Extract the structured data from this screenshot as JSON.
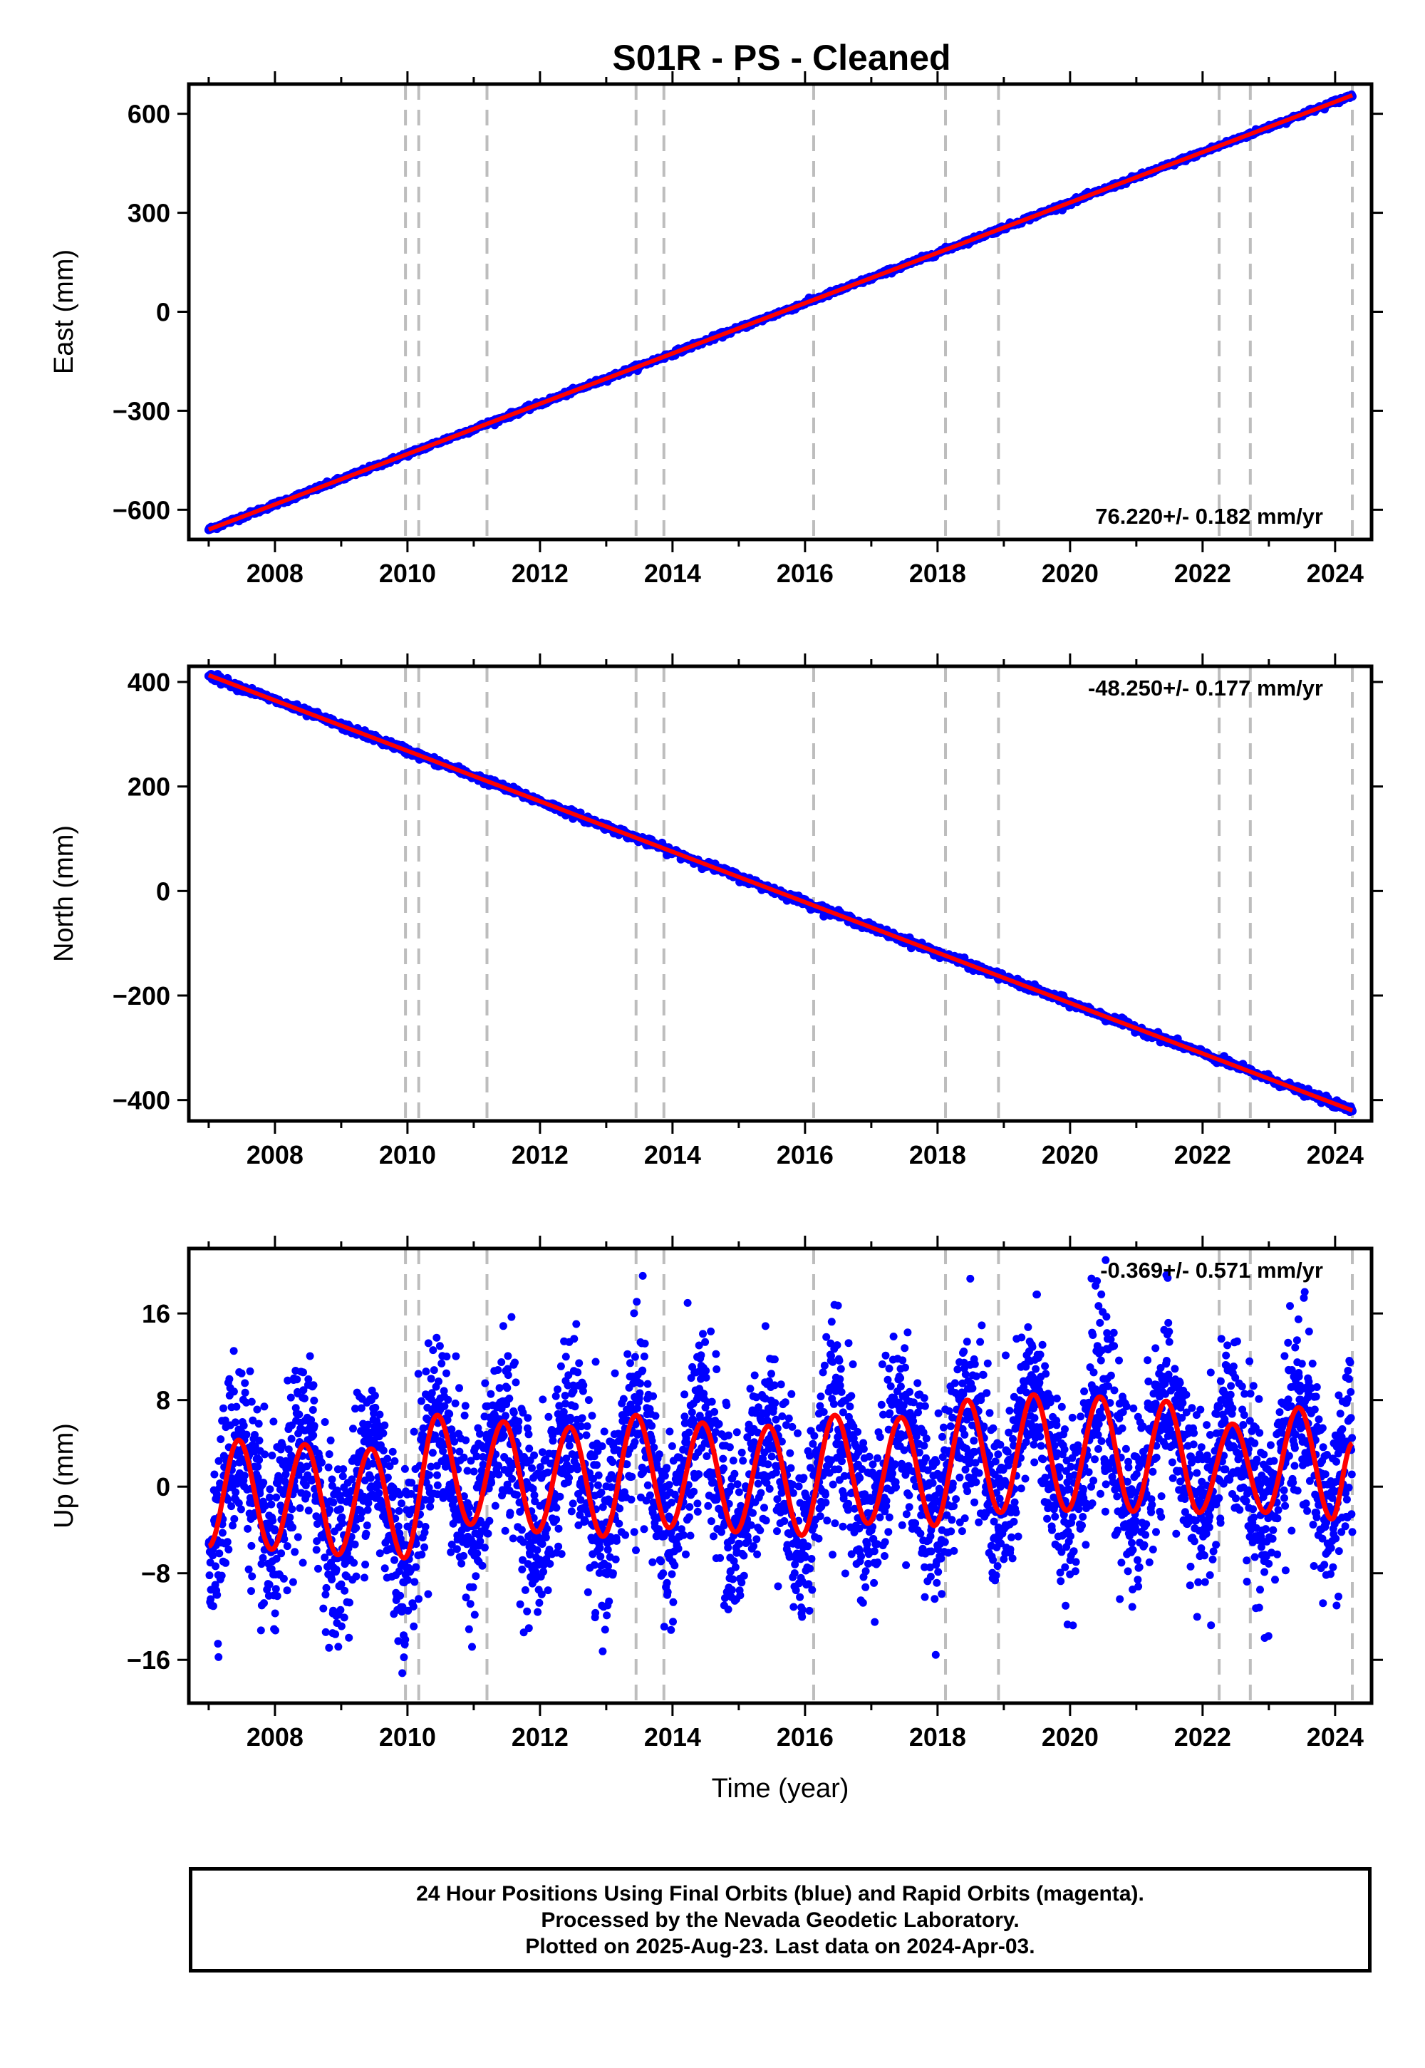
{
  "title": "S01R  - PS - Cleaned",
  "colors": {
    "data_points": "#0000ff",
    "model_fit": "#ff0000",
    "event_lines": "#bdbdbd",
    "frame": "#000000"
  },
  "footer": {
    "line1": "24 Hour Positions Using Final Orbits (blue) and Rapid Orbits (magenta).",
    "line2": "Processed by the Nevada Geodetic Laboratory.",
    "line3": "Plotted on 2025-Aug-23. Last data on 2024-Apr-03."
  },
  "chart_data": [
    {
      "type": "scatter",
      "panel": "east",
      "ylabel": "East (mm)",
      "xlabel": "",
      "xlim": [
        2006.7,
        2024.55
      ],
      "ylim": [
        -690,
        690
      ],
      "xticks": [
        2008,
        2010,
        2012,
        2014,
        2016,
        2018,
        2020,
        2022,
        2024
      ],
      "yticks": [
        -600,
        -300,
        0,
        300,
        600
      ],
      "rate_label": "76.220+/- 0.182 mm/yr",
      "rate_label_position": "bottom-right",
      "trend": {
        "start": [
          2007.0,
          -660
        ],
        "end": [
          2024.26,
          656
        ]
      },
      "event_lines": [
        2009.97,
        2010.17,
        2011.2,
        2013.45,
        2013.87,
        2016.13,
        2018.12,
        2018.92,
        2022.25,
        2022.72,
        2024.26
      ],
      "series": [
        {
          "name": "Final Orbits (blue)",
          "role": "daily positions",
          "x_range": [
            2007.0,
            2024.26
          ],
          "y_start": -660,
          "y_end": 656
        },
        {
          "role": "model fit",
          "x_range": [
            2007.0,
            2024.26
          ],
          "y_start": -660,
          "y_end": 656
        }
      ]
    },
    {
      "type": "scatter",
      "panel": "north",
      "ylabel": "North (mm)",
      "xlabel": "",
      "xlim": [
        2006.7,
        2024.55
      ],
      "ylim": [
        -440,
        430
      ],
      "xticks": [
        2008,
        2010,
        2012,
        2014,
        2016,
        2018,
        2020,
        2022,
        2024
      ],
      "yticks": [
        -400,
        -200,
        0,
        200,
        400
      ],
      "rate_label": "-48.250+/- 0.177 mm/yr",
      "rate_label_position": "top-right",
      "trend": {
        "start": [
          2007.0,
          413
        ],
        "end": [
          2024.26,
          -420
        ]
      },
      "event_lines": [
        2009.97,
        2010.17,
        2011.2,
        2013.45,
        2013.87,
        2016.13,
        2018.12,
        2018.92,
        2022.25,
        2022.72,
        2024.26
      ],
      "series": [
        {
          "name": "Final Orbits (blue)",
          "role": "daily positions",
          "x_range": [
            2007.0,
            2024.26
          ],
          "y_start": 413,
          "y_end": -420
        },
        {
          "role": "model fit",
          "x_range": [
            2007.0,
            2024.26
          ],
          "y_start": 413,
          "y_end": -420
        }
      ]
    },
    {
      "type": "scatter",
      "panel": "up",
      "ylabel": "Up (mm)",
      "xlabel": "Time (year)",
      "xlim": [
        2006.7,
        2024.55
      ],
      "ylim": [
        -20,
        22
      ],
      "xticks": [
        2008,
        2010,
        2012,
        2014,
        2016,
        2018,
        2020,
        2022,
        2024
      ],
      "yticks": [
        -16,
        -8,
        0,
        8,
        16
      ],
      "ytick_labels": [
        "−16",
        "−8",
        "0",
        "8",
        "16"
      ],
      "rate_label": "-0.369+/- 0.571 mm/yr",
      "rate_label_position": "top-right",
      "event_lines": [
        2009.97,
        2010.17,
        2011.2,
        2013.45,
        2013.87,
        2016.13,
        2018.12,
        2018.92,
        2022.25,
        2022.72,
        2024.26
      ],
      "seasonal_peaks": [
        [
          2007.45,
          4.3
        ],
        [
          2008.45,
          3.9
        ],
        [
          2009.45,
          3.5
        ],
        [
          2010.45,
          6.6
        ],
        [
          2011.45,
          6.0
        ],
        [
          2012.45,
          5.5
        ],
        [
          2013.45,
          6.6
        ],
        [
          2014.45,
          5.9
        ],
        [
          2015.45,
          5.6
        ],
        [
          2016.45,
          6.6
        ],
        [
          2017.45,
          6.4
        ],
        [
          2018.45,
          8.0
        ],
        [
          2019.45,
          8.5
        ],
        [
          2020.45,
          8.3
        ],
        [
          2021.45,
          7.9
        ],
        [
          2022.45,
          5.8
        ],
        [
          2023.45,
          7.3
        ]
      ],
      "seasonal_troughs": [
        [
          2007.0,
          -5.5
        ],
        [
          2007.95,
          -5.8
        ],
        [
          2008.95,
          -6.3
        ],
        [
          2009.95,
          -6.6
        ],
        [
          2010.95,
          -3.5
        ],
        [
          2011.95,
          -4.2
        ],
        [
          2012.95,
          -4.6
        ],
        [
          2013.95,
          -3.8
        ],
        [
          2014.95,
          -4.2
        ],
        [
          2015.95,
          -4.5
        ],
        [
          2016.95,
          -3.4
        ],
        [
          2017.95,
          -3.6
        ],
        [
          2018.95,
          -2.4
        ],
        [
          2019.95,
          -2.2
        ],
        [
          2020.95,
          -2.3
        ],
        [
          2021.95,
          -2.4
        ],
        [
          2022.95,
          -2.4
        ],
        [
          2023.95,
          -3.0
        ],
        [
          2024.26,
          4.0
        ]
      ],
      "series": [
        {
          "name": "Final Orbits (blue)",
          "role": "daily positions",
          "x_range": [
            2007.0,
            2024.26
          ],
          "y_range": [
            -19.5,
            21.5
          ]
        },
        {
          "role": "seasonal model fit",
          "x_range": [
            2007.0,
            2024.26
          ]
        }
      ]
    }
  ]
}
